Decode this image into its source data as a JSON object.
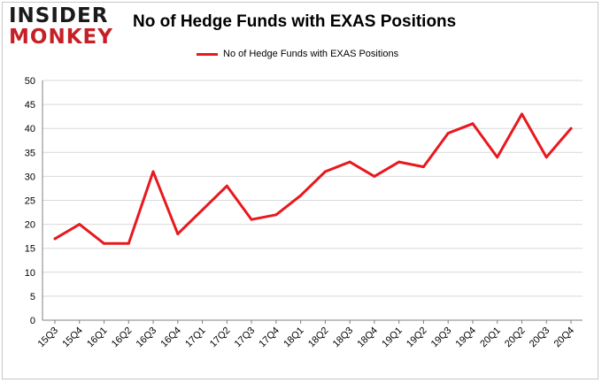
{
  "logo": {
    "line1": "INSIDER",
    "line2": "MONKEY"
  },
  "colors": {
    "series": "#e8181e",
    "grid": "#d9d9d9",
    "axis": "#808080"
  },
  "chart_data": {
    "type": "line",
    "title": "No of Hedge Funds with EXAS Positions",
    "xlabel": "",
    "ylabel": "",
    "legend_position": "top-center",
    "grid": true,
    "ylim": [
      0,
      50
    ],
    "yticks": [
      0,
      5,
      10,
      15,
      20,
      25,
      30,
      35,
      40,
      45,
      50
    ],
    "categories": [
      "15Q3",
      "15Q4",
      "16Q1",
      "16Q2",
      "16Q3",
      "16Q4",
      "17Q1",
      "17Q2",
      "17Q3",
      "17Q4",
      "18Q1",
      "18Q2",
      "18Q3",
      "18Q4",
      "19Q1",
      "19Q2",
      "19Q3",
      "19Q4",
      "20Q1",
      "20Q2",
      "20Q3",
      "20Q4"
    ],
    "series": [
      {
        "name": "No of Hedge Funds with EXAS Positions",
        "values": [
          17,
          20,
          16,
          16,
          31,
          18,
          23,
          28,
          21,
          22,
          26,
          31,
          33,
          30,
          33,
          32,
          39,
          41,
          34,
          43,
          34,
          40
        ]
      }
    ]
  }
}
